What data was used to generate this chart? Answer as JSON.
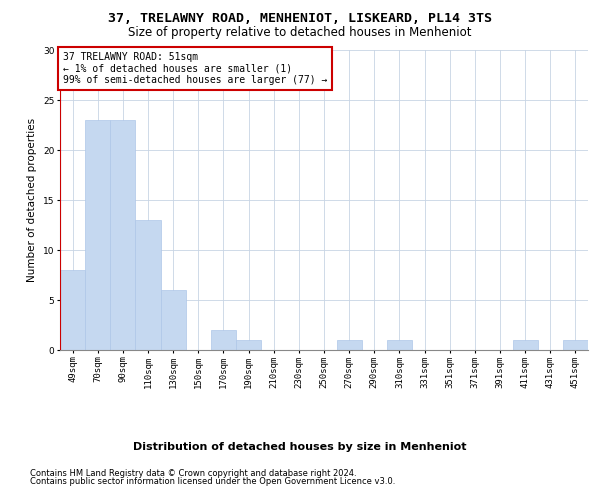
{
  "title": "37, TRELAWNY ROAD, MENHENIOT, LISKEARD, PL14 3TS",
  "subtitle": "Size of property relative to detached houses in Menheniot",
  "xlabel": "Distribution of detached houses by size in Menheniot",
  "ylabel": "Number of detached properties",
  "categories": [
    "49sqm",
    "70sqm",
    "90sqm",
    "110sqm",
    "130sqm",
    "150sqm",
    "170sqm",
    "190sqm",
    "210sqm",
    "230sqm",
    "250sqm",
    "270sqm",
    "290sqm",
    "310sqm",
    "331sqm",
    "351sqm",
    "371sqm",
    "391sqm",
    "411sqm",
    "431sqm",
    "451sqm"
  ],
  "values": [
    8,
    23,
    23,
    13,
    6,
    0,
    2,
    1,
    0,
    0,
    0,
    1,
    0,
    1,
    0,
    0,
    0,
    0,
    1,
    0,
    1
  ],
  "bar_color": "#c5d8f0",
  "bar_edge_color": "#aec6e8",
  "grid_color": "#c8d4e4",
  "annotation_text": "37 TRELAWNY ROAD: 51sqm\n← 1% of detached houses are smaller (1)\n99% of semi-detached houses are larger (77) →",
  "annotation_box_color": "#ffffff",
  "annotation_box_edge_color": "#cc0000",
  "red_line_x": -0.5,
  "ylim": [
    0,
    30
  ],
  "yticks": [
    0,
    5,
    10,
    15,
    20,
    25,
    30
  ],
  "footer_line1": "Contains HM Land Registry data © Crown copyright and database right 2024.",
  "footer_line2": "Contains public sector information licensed under the Open Government Licence v3.0.",
  "title_fontsize": 9.5,
  "subtitle_fontsize": 8.5,
  "xlabel_fontsize": 8,
  "ylabel_fontsize": 7.5,
  "tick_fontsize": 6.5,
  "annotation_fontsize": 7,
  "footer_fontsize": 6
}
